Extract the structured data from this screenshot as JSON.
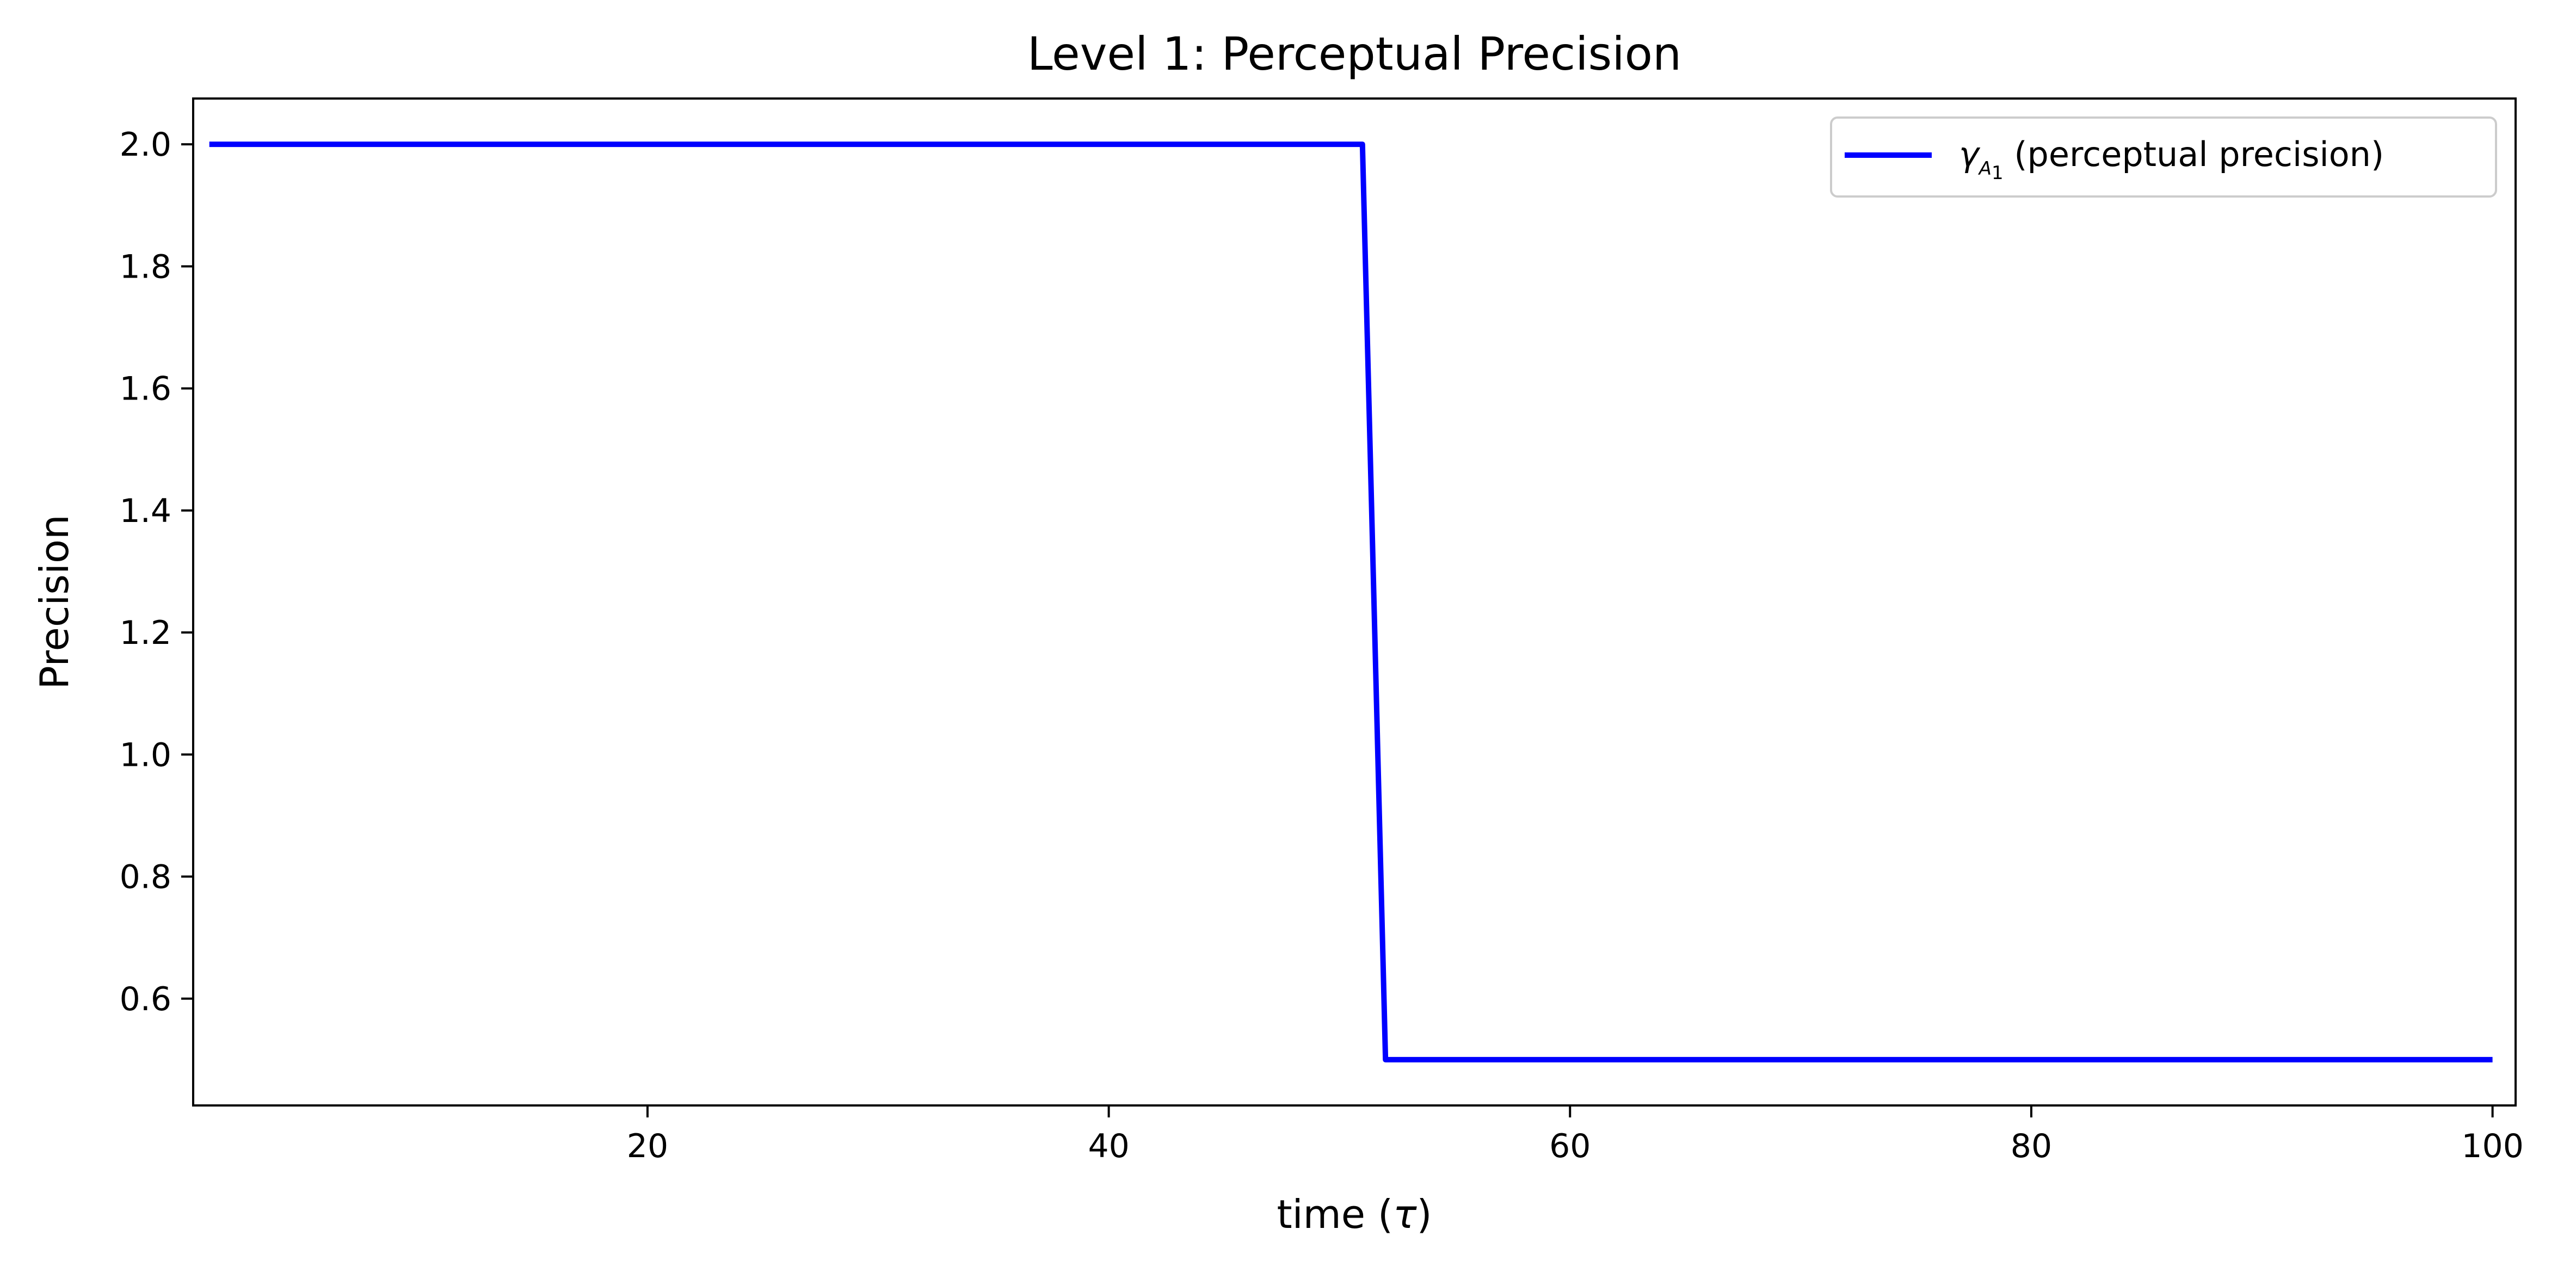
{
  "chart_data": {
    "type": "line",
    "title": "Level 1: Perceptual Precision",
    "xlabel_text": "time (",
    "xlabel_symbol": "τ",
    "xlabel_close": ")",
    "ylabel": "Precision",
    "xlim": [
      0.3,
      101.0
    ],
    "ylim": [
      0.425,
      2.075
    ],
    "xticks": [
      20,
      40,
      60,
      80,
      100
    ],
    "xtick_labels": [
      "20",
      "40",
      "60",
      "80",
      "100"
    ],
    "yticks": [
      0.6,
      0.8,
      1.0,
      1.2,
      1.4,
      1.6,
      1.8,
      2.0
    ],
    "ytick_labels": [
      "0.6",
      "0.8",
      "1.0",
      "1.2",
      "1.4",
      "1.6",
      "1.8",
      "2.0"
    ],
    "grid": false,
    "legend_position": "top-right",
    "series": [
      {
        "legend_symbol": "γ",
        "legend_sub": "A",
        "legend_subsub": "1",
        "legend_text": " (perceptual precision)",
        "color": "#0000ff",
        "x": [
          1,
          51,
          52,
          100
        ],
        "y": [
          2.0,
          2.0,
          0.5,
          0.5
        ]
      }
    ]
  }
}
